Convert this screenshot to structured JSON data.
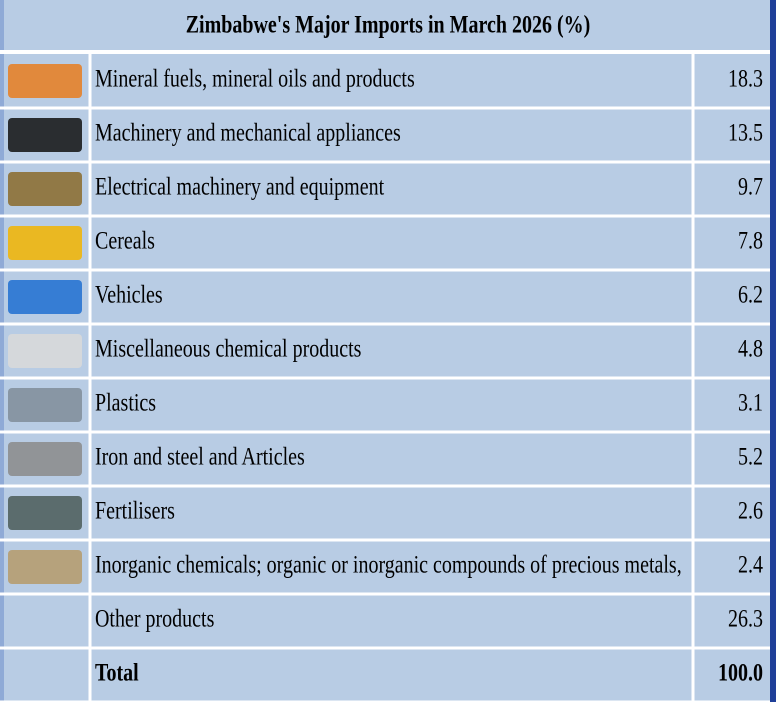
{
  "title": "Zimbabwe's Major Imports in  March  2026 (%)",
  "table": {
    "rows": [
      [
        "Mineral fuels, mineral oils and products",
        "18.3"
      ],
      [
        "Machinery and mechanical appliances",
        "13.5"
      ],
      [
        "Electrical machinery and equipment",
        "9.7"
      ],
      [
        "Cereals",
        "7.8"
      ],
      [
        "Vehicles",
        "6.2"
      ],
      [
        "Miscellaneous chemical products",
        "4.8"
      ],
      [
        "Plastics",
        "3.1"
      ],
      [
        "Iron and steel and Articles",
        "5.2"
      ],
      [
        "Fertilisers",
        "2.6"
      ],
      [
        "Inorganic chemicals; organic or inorganic compounds of precious metals,",
        "2.4"
      ],
      [
        "Other products",
        "26.3"
      ],
      [
        "Total",
        "100.0"
      ]
    ]
  }
}
